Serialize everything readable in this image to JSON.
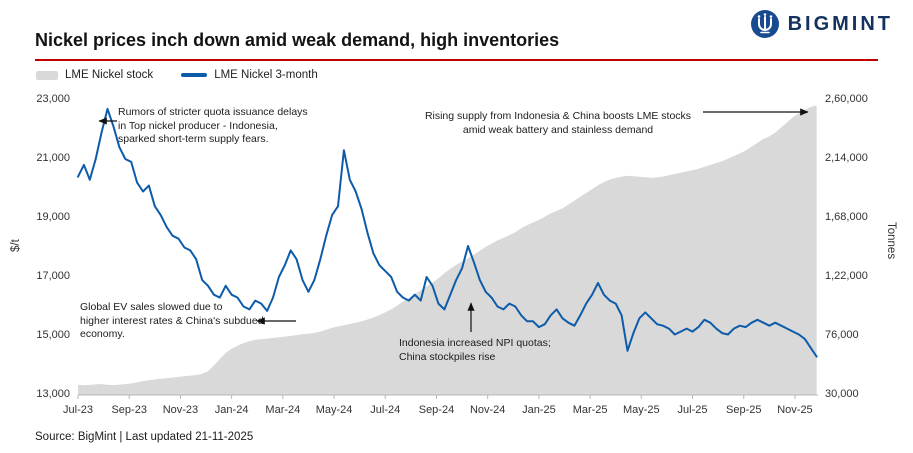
{
  "header": {
    "title": "Nickel prices inch down amid weak demand, high inventories",
    "brand": "BIGMINT",
    "brand_color": "#15325E",
    "accent_rule_color": "#C00000"
  },
  "legend": [
    {
      "label": "LME Nickel stock",
      "swatch": "area",
      "color": "#D9D9D9"
    },
    {
      "label": "LME Nickel 3-month",
      "swatch": "line",
      "color": "#0D5BA9"
    }
  ],
  "annotations": [
    {
      "id": "quota-rumors",
      "text": "Rumors of stricter quota issuance delays\nin Top nickel producer - Indonesia,\nsparked short-term supply fears."
    },
    {
      "id": "rising-supply",
      "text": "Rising supply from Indonesia & China boosts LME stocks\namid weak battery and stainless demand"
    },
    {
      "id": "ev-sales",
      "text": "Global EV sales slowed due to\nhigher interest rates & China's subdued\neconomy."
    },
    {
      "id": "npi-quotas",
      "text": "Indonesia increased NPI quotas;\nChina stockpiles rise"
    }
  ],
  "footer": {
    "source": "Source: BigMint | Last updated 21-11-2025"
  },
  "chart_data": {
    "type": "line+area",
    "title": "Nickel prices inch down amid weak demand, high inventories",
    "x_description": "Weekly data, Jul-2023 to Nov-2025",
    "x_axis": {
      "max_months": 28.9,
      "tick_months": [
        0,
        2,
        4,
        6,
        8,
        10,
        12,
        14,
        16,
        18,
        20,
        22,
        24,
        26,
        28
      ],
      "tick_labels": [
        "Jul-23",
        "Sep-23",
        "Nov-23",
        "Jan-24",
        "Mar-24",
        "May-24",
        "Jul-24",
        "Sep-24",
        "Nov-24",
        "Jan-25",
        "Mar-25",
        "May-25",
        "Jul-25",
        "Sep-25",
        "Nov-25"
      ]
    },
    "left_axis": {
      "label": "$/t",
      "min": 13000,
      "max": 23000,
      "ticks": [
        "23,000",
        "21,000",
        "19,000",
        "17,000",
        "15,000",
        "13,000"
      ]
    },
    "right_axis": {
      "label": "Tonnes",
      "min": 30000,
      "max": 260000,
      "ticks": [
        "2,60,000",
        "2,14,000",
        "1,68,000",
        "1,22,000",
        "76,000",
        "30,000"
      ]
    },
    "grid": false,
    "legend_position": "top-left",
    "series": [
      {
        "name": "LME Nickel stock",
        "type": "area",
        "axis": "right",
        "color": "#D9D9D9",
        "values": [
          38000,
          37600,
          37900,
          38300,
          38600,
          37900,
          37700,
          38100,
          38500,
          39000,
          39800,
          40800,
          41600,
          42100,
          42600,
          43100,
          43600,
          44100,
          44600,
          45100,
          45600,
          46600,
          48500,
          53000,
          58000,
          63000,
          66000,
          68500,
          70500,
          72000,
          73000,
          73500,
          74000,
          74500,
          75000,
          75500,
          76000,
          76800,
          77300,
          77800,
          78400,
          79400,
          80800,
          82400,
          83400,
          84400,
          85400,
          86400,
          87400,
          88900,
          90400,
          92400,
          94400,
          96700,
          99700,
          102700,
          105700,
          108700,
          111700,
          114700,
          117700,
          121000,
          125000,
          128500,
          131500,
          134000,
          136500,
          139500,
          142500,
          145500,
          148000,
          150500,
          152500,
          154500,
          157000,
          160000,
          162500,
          164500,
          166500,
          169000,
          171500,
          173500,
          175500,
          178500,
          181500,
          184500,
          187500,
          190500,
          193500,
          196000,
          198000,
          199200,
          200200,
          200900,
          200500,
          200100,
          199700,
          199300,
          199700,
          200300,
          201300,
          202300,
          203300,
          204300,
          205300,
          206300,
          207900,
          209300,
          210900,
          212300,
          214300,
          216300,
          218300,
          220600,
          223600,
          226600,
          229600,
          231600,
          234600,
          238600,
          242600,
          246600,
          249600,
          252100,
          254600,
          255800
        ]
      },
      {
        "name": "LME Nickel 3-month",
        "type": "line",
        "axis": "left",
        "color": "#0D5BA9",
        "values": [
          20400,
          20800,
          20300,
          21000,
          21900,
          22700,
          22100,
          21400,
          21000,
          20900,
          20200,
          19900,
          20100,
          19400,
          19100,
          18700,
          18400,
          18300,
          18000,
          17900,
          17600,
          16900,
          16700,
          16400,
          16300,
          16700,
          16400,
          16300,
          16000,
          15900,
          16200,
          16100,
          15850,
          16300,
          17000,
          17400,
          17900,
          17600,
          16900,
          16500,
          16900,
          17600,
          18400,
          19100,
          19400,
          21300,
          20300,
          19900,
          19300,
          18500,
          17800,
          17400,
          17200,
          17000,
          16500,
          16300,
          16200,
          16400,
          16200,
          17000,
          16700,
          16100,
          15900,
          16400,
          16900,
          17300,
          18050,
          17500,
          16900,
          16500,
          16300,
          16000,
          15900,
          16100,
          16000,
          15700,
          15500,
          15500,
          15300,
          15400,
          15700,
          15900,
          15600,
          15450,
          15350,
          15700,
          16100,
          16400,
          16800,
          16400,
          16200,
          16100,
          15700,
          14500,
          15100,
          15600,
          15800,
          15600,
          15400,
          15350,
          15250,
          15050,
          15150,
          15250,
          15150,
          15300,
          15550,
          15450,
          15250,
          15100,
          15050,
          15250,
          15350,
          15300,
          15450,
          15550,
          15450,
          15350,
          15450,
          15350,
          15250,
          15150,
          15050,
          14900,
          14600,
          14300
        ]
      }
    ]
  }
}
